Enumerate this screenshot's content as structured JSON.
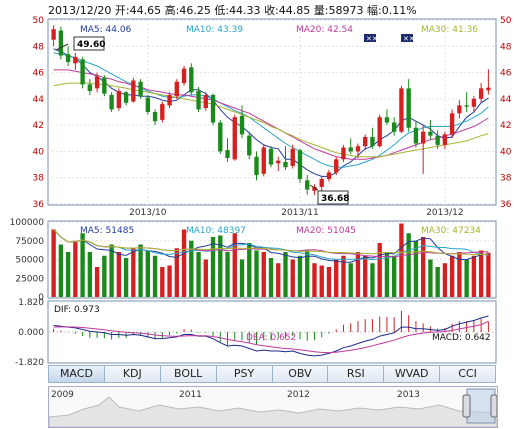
{
  "header": {
    "date": "2013/12/20",
    "open_label": "开:",
    "open": "44.65",
    "high_label": "高:",
    "high": "46.25",
    "low_label": "低:",
    "low": "44.33",
    "close_label": "收:",
    "close": "44.85",
    "volume_label": "量:",
    "volume": "58973",
    "change_label": "幅:",
    "change": "0.11%"
  },
  "ma_legend": {
    "ma5": "MA5: 44.06",
    "ma10": "MA10: 43.39",
    "ma20": "MA20: 42.54",
    "ma30": "MA30: 41.36"
  },
  "vol_legend": {
    "ma5": "MA5: 51485",
    "ma10": "MA10: 48397",
    "ma20": "MA20: 51045",
    "ma30": "MA30: 47234"
  },
  "macd_legend": {
    "dif": "DIF: 0.973",
    "dea": "DEA: 0.652",
    "macd": "MACD: 0.642"
  },
  "price_high_marker": "49.60",
  "price_low_marker": "36.68",
  "tabs": [
    "MACD",
    "KDJ",
    "BOLL",
    "PSY",
    "OBV",
    "RSI",
    "WVAD",
    "CCI"
  ],
  "active_tab": "MACD",
  "overview_years": [
    "2009",
    "2011",
    "2012",
    "2013"
  ],
  "colors": {
    "up": "#d42020",
    "down": "#1a8a1a",
    "ma5": "#1f3c9c",
    "ma10": "#2aa6c8",
    "ma20": "#c0399e",
    "ma30": "#a8b52e",
    "axis_red": "#c00000"
  },
  "chart_data": [
    {
      "type": "candlestick",
      "title": "",
      "ylim": [
        36,
        50
      ],
      "yticks": [
        36,
        38,
        40,
        42,
        44,
        46,
        48,
        50
      ],
      "x_labels": [
        "2013/10",
        "2013/11",
        "2013/12"
      ],
      "ohlc": [
        [
          48.5,
          49.6,
          48.0,
          49.3
        ],
        [
          49.2,
          49.5,
          47.0,
          47.3
        ],
        [
          47.4,
          48.0,
          46.5,
          46.8
        ],
        [
          46.7,
          47.5,
          46.2,
          47.2
        ],
        [
          47.0,
          47.2,
          44.8,
          45.1
        ],
        [
          45.1,
          45.5,
          44.3,
          44.6
        ],
        [
          44.8,
          46.0,
          44.5,
          45.7
        ],
        [
          45.6,
          45.8,
          44.2,
          44.4
        ],
        [
          44.3,
          44.5,
          43.0,
          43.2
        ],
        [
          43.3,
          44.8,
          43.1,
          44.6
        ],
        [
          44.5,
          44.6,
          43.5,
          43.7
        ],
        [
          43.8,
          45.6,
          43.7,
          45.4
        ],
        [
          45.3,
          45.5,
          44.0,
          44.2
        ],
        [
          44.1,
          44.3,
          42.8,
          43.0
        ],
        [
          43.0,
          43.2,
          42.0,
          42.3
        ],
        [
          42.4,
          43.8,
          42.2,
          43.6
        ],
        [
          43.5,
          44.5,
          43.3,
          44.3
        ],
        [
          44.2,
          45.5,
          44.0,
          45.3
        ],
        [
          45.2,
          46.5,
          45.0,
          46.3
        ],
        [
          46.4,
          46.7,
          44.3,
          44.5
        ],
        [
          44.6,
          44.9,
          43.0,
          43.2
        ],
        [
          43.3,
          44.5,
          43.1,
          44.3
        ],
        [
          44.3,
          44.4,
          42.0,
          42.2
        ],
        [
          42.2,
          42.4,
          39.8,
          40.0
        ],
        [
          40.1,
          41.0,
          39.2,
          39.5
        ],
        [
          39.4,
          42.8,
          39.3,
          42.6
        ],
        [
          42.7,
          43.5,
          41.0,
          41.3
        ],
        [
          41.2,
          41.5,
          39.4,
          39.7
        ],
        [
          39.6,
          40.0,
          37.8,
          38.2
        ],
        [
          38.3,
          40.5,
          38.1,
          40.3
        ],
        [
          40.2,
          40.4,
          38.8,
          39.0
        ],
        [
          39.1,
          39.6,
          38.5,
          39.3
        ],
        [
          39.2,
          40.4,
          38.6,
          38.8
        ],
        [
          38.9,
          40.5,
          38.7,
          40.2
        ],
        [
          40.1,
          40.2,
          37.6,
          37.9
        ],
        [
          37.8,
          38.2,
          36.7,
          37.1
        ],
        [
          37.0,
          37.5,
          36.68,
          37.3
        ],
        [
          37.3,
          38.1,
          37.0,
          37.9
        ],
        [
          37.9,
          38.6,
          37.7,
          38.4
        ],
        [
          38.4,
          39.6,
          38.2,
          39.4
        ],
        [
          39.4,
          40.5,
          39.2,
          40.3
        ],
        [
          40.3,
          41.0,
          39.8,
          40.0
        ],
        [
          40.0,
          40.6,
          39.5,
          40.4
        ],
        [
          40.4,
          41.3,
          40.1,
          41.1
        ],
        [
          41.1,
          41.8,
          40.2,
          40.4
        ],
        [
          40.4,
          42.8,
          40.3,
          42.6
        ],
        [
          42.6,
          43.2,
          42.0,
          42.2
        ],
        [
          42.2,
          42.6,
          41.2,
          41.5
        ],
        [
          41.5,
          45.0,
          41.4,
          44.8
        ],
        [
          44.8,
          45.5,
          41.5,
          41.8
        ],
        [
          41.8,
          42.3,
          40.3,
          40.6
        ],
        [
          40.6,
          42.0,
          38.3,
          41.5
        ],
        [
          41.5,
          42.4,
          40.9,
          41.2
        ],
        [
          41.2,
          41.6,
          40.2,
          40.5
        ],
        [
          40.5,
          41.5,
          40.2,
          41.3
        ],
        [
          41.3,
          43.2,
          41.0,
          42.9
        ],
        [
          42.9,
          43.9,
          42.5,
          43.5
        ],
        [
          43.5,
          44.5,
          43.0,
          43.4
        ],
        [
          43.4,
          44.2,
          43.0,
          44.0
        ],
        [
          44.0,
          45.2,
          43.7,
          44.8
        ],
        [
          44.65,
          46.25,
          44.33,
          44.85
        ]
      ],
      "series": [
        {
          "name": "MA5",
          "values": [
            47.8,
            47.6,
            47.3,
            47.1,
            46.6,
            46.0,
            45.7,
            45.3,
            44.8,
            44.5,
            44.3,
            44.3,
            44.2,
            44.2,
            44.1,
            43.9,
            43.8,
            43.9,
            44.3,
            44.7,
            44.7,
            44.4,
            43.9,
            43.2,
            42.6,
            42.2,
            41.9,
            41.4,
            40.9,
            40.5,
            40.3,
            40.2,
            39.4,
            39.4,
            39.0,
            38.6,
            38.3,
            38.1,
            38.1,
            38.4,
            38.9,
            39.2,
            39.7,
            40.2,
            40.4,
            40.9,
            41.2,
            41.6,
            42.3,
            42.6,
            42.3,
            42.0,
            41.7,
            41.2,
            41.0,
            41.1,
            41.9,
            42.6,
            43.0,
            43.7,
            44.06
          ]
        },
        {
          "name": "MA10",
          "values": [
            47.5,
            47.4,
            47.3,
            47.1,
            46.9,
            46.7,
            46.5,
            46.2,
            45.9,
            45.6,
            45.3,
            45.1,
            44.8,
            44.6,
            44.4,
            44.2,
            44.1,
            44.1,
            44.2,
            44.3,
            44.3,
            44.2,
            44.0,
            43.7,
            43.4,
            43.1,
            42.9,
            42.6,
            42.2,
            41.8,
            41.4,
            41.0,
            40.6,
            40.3,
            40.0,
            39.7,
            39.4,
            39.1,
            38.9,
            38.8,
            38.8,
            38.9,
            39.0,
            39.2,
            39.4,
            39.7,
            40.1,
            40.5,
            41.0,
            41.4,
            41.6,
            41.8,
            41.9,
            41.9,
            41.9,
            41.9,
            42.1,
            42.3,
            42.6,
            42.9,
            43.39
          ]
        },
        {
          "name": "MA20",
          "values": [
            46.2,
            46.2,
            46.2,
            46.1,
            46.0,
            45.9,
            45.8,
            45.6,
            45.5,
            45.3,
            45.2,
            45.0,
            44.9,
            44.7,
            44.6,
            44.5,
            44.4,
            44.3,
            44.3,
            44.2,
            44.1,
            44.0,
            43.9,
            43.7,
            43.5,
            43.3,
            43.1,
            42.9,
            42.6,
            42.3,
            42.0,
            41.7,
            41.4,
            41.1,
            40.8,
            40.5,
            40.2,
            40.0,
            39.8,
            39.6,
            39.5,
            39.4,
            39.4,
            39.4,
            39.5,
            39.6,
            39.7,
            39.9,
            40.1,
            40.3,
            40.5,
            40.7,
            40.9,
            41.0,
            41.2,
            41.3,
            41.5,
            41.7,
            41.9,
            42.2,
            42.54
          ]
        },
        {
          "name": "MA30",
          "values": [
            45.0,
            45.1,
            45.2,
            45.2,
            45.2,
            45.2,
            45.1,
            45.1,
            45.0,
            44.9,
            44.8,
            44.7,
            44.6,
            44.5,
            44.4,
            44.3,
            44.2,
            44.1,
            44.0,
            43.9,
            43.8,
            43.7,
            43.6,
            43.4,
            43.2,
            43.0,
            42.8,
            42.6,
            42.4,
            42.2,
            41.9,
            41.7,
            41.4,
            41.2,
            40.9,
            40.7,
            40.5,
            40.3,
            40.1,
            39.9,
            39.8,
            39.7,
            39.6,
            39.6,
            39.6,
            39.6,
            39.7,
            39.8,
            39.9,
            40.0,
            40.1,
            40.2,
            40.3,
            40.4,
            40.5,
            40.6,
            40.7,
            40.8,
            41.0,
            41.2,
            41.36
          ]
        }
      ]
    },
    {
      "type": "bar",
      "title": "",
      "ylim": [
        0,
        100000
      ],
      "yticks": [
        0,
        25000,
        50000,
        75000,
        100000
      ],
      "volume": [
        90000,
        70000,
        60000,
        75000,
        85000,
        60000,
        40000,
        55000,
        70000,
        60000,
        52000,
        65000,
        70000,
        62000,
        55000,
        40000,
        42000,
        65000,
        90000,
        75000,
        60000,
        50000,
        80000,
        82000,
        60000,
        85000,
        50000,
        72000,
        62000,
        60000,
        52000,
        45000,
        60000,
        50000,
        55000,
        62000,
        45000,
        42000,
        40000,
        50000,
        55000,
        45000,
        60000,
        55000,
        45000,
        72000,
        60000,
        55000,
        98000,
        85000,
        75000,
        80000,
        50000,
        40000,
        45000,
        55000,
        60000,
        50000,
        55000,
        62000,
        58973
      ]
    },
    {
      "type": "line",
      "title": "",
      "ylim": [
        -1.82,
        1.82
      ],
      "yticks": [
        -1.82,
        0.0,
        1.82
      ],
      "series": [
        {
          "name": "DIF",
          "values": [
            0.4,
            0.35,
            0.3,
            0.25,
            0.15,
            0.05,
            0.0,
            -0.05,
            -0.15,
            -0.15,
            -0.2,
            -0.15,
            -0.2,
            -0.3,
            -0.4,
            -0.4,
            -0.35,
            -0.3,
            -0.15,
            -0.15,
            -0.25,
            -0.25,
            -0.4,
            -0.65,
            -0.85,
            -0.8,
            -0.85,
            -1.0,
            -1.15,
            -1.1,
            -1.15,
            -1.15,
            -1.2,
            -1.15,
            -1.3,
            -1.4,
            -1.45,
            -1.4,
            -1.3,
            -1.15,
            -0.95,
            -0.85,
            -0.7,
            -0.55,
            -0.45,
            -0.25,
            -0.15,
            -0.05,
            0.3,
            0.3,
            0.2,
            0.2,
            0.15,
            0.1,
            0.15,
            0.35,
            0.5,
            0.6,
            0.7,
            0.85,
            0.973
          ]
        },
        {
          "name": "DEA",
          "values": [
            0.3,
            0.31,
            0.31,
            0.3,
            0.27,
            0.23,
            0.18,
            0.14,
            0.08,
            0.03,
            -0.02,
            -0.05,
            -0.08,
            -0.12,
            -0.18,
            -0.22,
            -0.25,
            -0.26,
            -0.24,
            -0.22,
            -0.23,
            -0.23,
            -0.27,
            -0.35,
            -0.45,
            -0.52,
            -0.59,
            -0.67,
            -0.77,
            -0.84,
            -0.9,
            -0.95,
            -1.0,
            -1.03,
            -1.08,
            -1.14,
            -1.2,
            -1.24,
            -1.25,
            -1.23,
            -1.17,
            -1.11,
            -1.03,
            -0.94,
            -0.84,
            -0.72,
            -0.61,
            -0.5,
            -0.34,
            -0.21,
            -0.13,
            -0.06,
            -0.02,
            0.0,
            0.03,
            0.1,
            0.18,
            0.27,
            0.35,
            0.45,
            0.652
          ]
        }
      ]
    }
  ]
}
